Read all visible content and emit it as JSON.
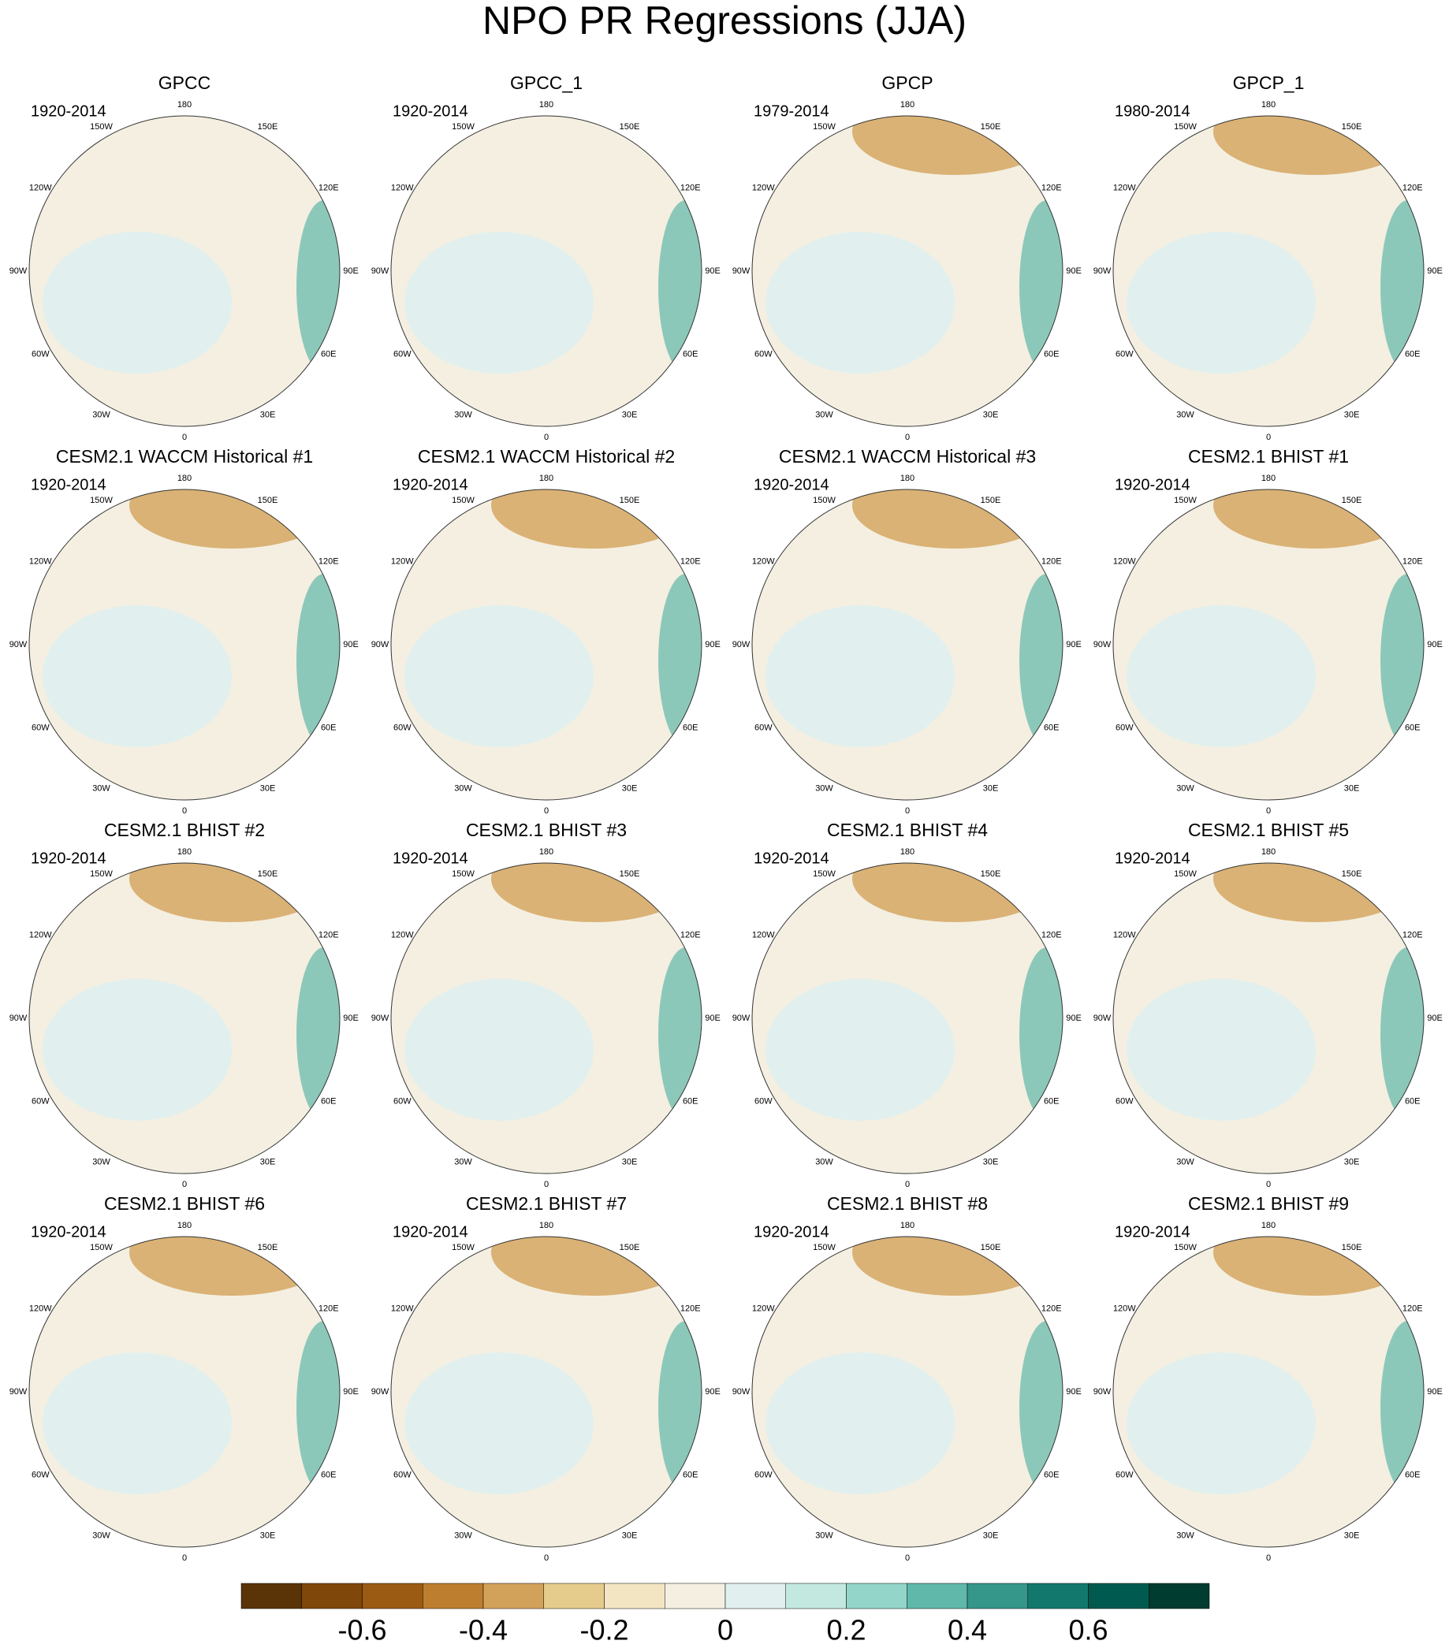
{
  "title": "NPO PR Regressions (JJA)",
  "panels": [
    {
      "title": "GPCC",
      "period": "1920-2014"
    },
    {
      "title": "GPCC_1",
      "period": "1920-2014"
    },
    {
      "title": "GPCP",
      "period": "1979-2014"
    },
    {
      "title": "GPCP_1",
      "period": "1980-2014"
    },
    {
      "title": "CESM2.1 WACCM Historical #1",
      "period": "1920-2014"
    },
    {
      "title": "CESM2.1 WACCM Historical #2",
      "period": "1920-2014"
    },
    {
      "title": "CESM2.1 WACCM Historical #3",
      "period": "1920-2014"
    },
    {
      "title": "CESM2.1 BHIST #1",
      "period": "1920-2014"
    },
    {
      "title": "CESM2.1 BHIST #2",
      "period": "1920-2014"
    },
    {
      "title": "CESM2.1 BHIST #3",
      "period": "1920-2014"
    },
    {
      "title": "CESM2.1 BHIST #4",
      "period": "1920-2014"
    },
    {
      "title": "CESM2.1 BHIST #5",
      "period": "1920-2014"
    },
    {
      "title": "CESM2.1 BHIST #6",
      "period": "1920-2014"
    },
    {
      "title": "CESM2.1 BHIST #7",
      "period": "1920-2014"
    },
    {
      "title": "CESM2.1 BHIST #8",
      "period": "1920-2014"
    },
    {
      "title": "CESM2.1 BHIST #9",
      "period": "1920-2014"
    }
  ],
  "lon_labels": [
    "180",
    "150E",
    "120E",
    "90E",
    "60E",
    "30E",
    "0",
    "30W",
    "60W",
    "90W",
    "120W",
    "150W"
  ],
  "colorbar": {
    "type": "colorbar",
    "colors": [
      "#5a3306",
      "#7f4709",
      "#9c5b12",
      "#be7e2f",
      "#d3a25a",
      "#e6cc8c",
      "#f3e5c2",
      "#f4efe1",
      "#e1f0ee",
      "#c2e8e0",
      "#93d6c9",
      "#5fb8a9",
      "#35968a",
      "#12786e",
      "#015a4f",
      "#003c30"
    ],
    "xlim": [
      -0.8,
      0.8
    ],
    "xticks": [
      -0.6,
      -0.4,
      -0.2,
      0,
      0.2,
      0.4,
      0.6
    ]
  }
}
